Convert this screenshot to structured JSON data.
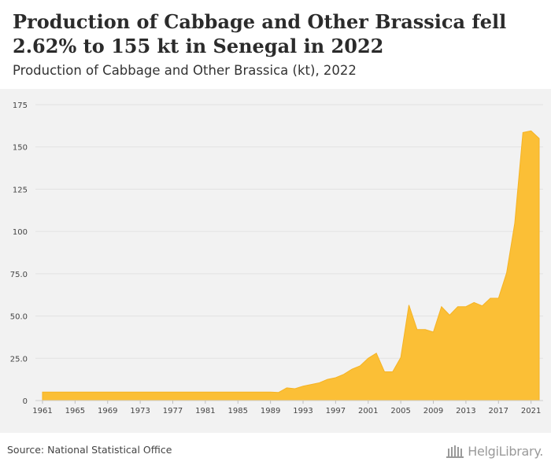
{
  "header": {
    "title": "Production of Cabbage and Other Brassica fell 2.62% to 155 kt in Senegal in 2022",
    "subtitle": "Production of Cabbage and Other Brassica (kt), 2022"
  },
  "footer": {
    "source": "Source: National Statistical Office",
    "logo_text": "HelgiLibrary."
  },
  "colors": {
    "area_fill": "#fbbf36",
    "area_stroke": "#f5b324",
    "grid": "#e2e2e2",
    "axis_text": "#444444"
  },
  "chart_data": {
    "type": "area",
    "title": "Production of Cabbage and Other Brassica (kt), 2022",
    "xlabel": "",
    "ylabel": "",
    "grid": true,
    "xlim": [
      1961,
      2022
    ],
    "ylim": [
      0,
      175
    ],
    "y_ticks": [
      0,
      25,
      50,
      75,
      100,
      125,
      150,
      175
    ],
    "y_tick_labels": [
      "0",
      "25.0",
      "50.0",
      "75.0",
      "100",
      "125",
      "150",
      "175"
    ],
    "x_ticks": [
      1961,
      1965,
      1969,
      1973,
      1977,
      1981,
      1985,
      1989,
      1993,
      1997,
      2001,
      2005,
      2009,
      2013,
      2017,
      2021
    ],
    "x": [
      1961,
      1962,
      1963,
      1964,
      1965,
      1966,
      1967,
      1968,
      1969,
      1970,
      1971,
      1972,
      1973,
      1974,
      1975,
      1976,
      1977,
      1978,
      1979,
      1980,
      1981,
      1982,
      1983,
      1984,
      1985,
      1986,
      1987,
      1988,
      1989,
      1990,
      1991,
      1992,
      1993,
      1994,
      1995,
      1996,
      1997,
      1998,
      1999,
      2000,
      2001,
      2002,
      2003,
      2004,
      2005,
      2006,
      2007,
      2008,
      2009,
      2010,
      2011,
      2012,
      2013,
      2014,
      2015,
      2016,
      2017,
      2018,
      2019,
      2020,
      2021,
      2022
    ],
    "series": [
      {
        "values": [
          5,
          5,
          5,
          5,
          5,
          5,
          5,
          5,
          5,
          5,
          5,
          5,
          5,
          5,
          5,
          5,
          5,
          5,
          5,
          5,
          5,
          5,
          5,
          5,
          5,
          5,
          5,
          5,
          5,
          4.8,
          7.5,
          7,
          8.5,
          9.5,
          10.5,
          12.5,
          13.5,
          15.5,
          18.5,
          20.5,
          25,
          28,
          17,
          17,
          25.5,
          56.5,
          42,
          42,
          40.5,
          55.5,
          50.5,
          55.5,
          55.5,
          58,
          56,
          60.5,
          60.5,
          75.5,
          105,
          158.5,
          159.5,
          155
        ]
      }
    ]
  }
}
